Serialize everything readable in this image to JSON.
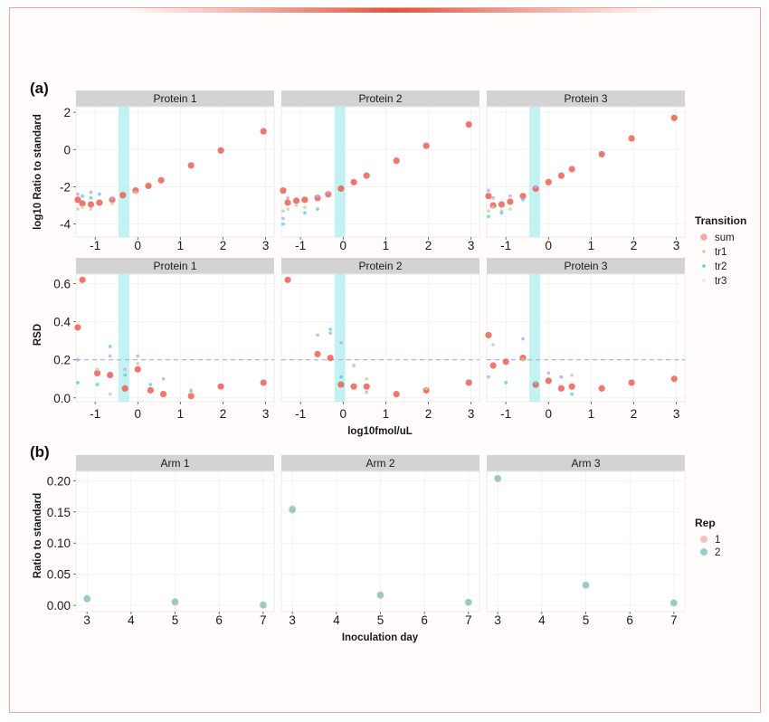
{
  "colors": {
    "sum": "#e8564a",
    "tr1": "#c9cfa8",
    "tr2": "#5ccfd9",
    "tr3": "#c9a3f0",
    "rep1": "#f4a9a0",
    "rep2": "#7ec9c8",
    "strip": "#d3d3d3",
    "highlight": "#a9ecec",
    "accent": "#e25440"
  },
  "panel_a": {
    "tag": "(a)",
    "xlabel": "log10fmol/uL",
    "top_ylabel": "log10 Ratio to standard",
    "bottom_ylabel": "RSD",
    "legend": {
      "title": "Transition",
      "items": [
        "sum",
        "tr1",
        "tr2",
        "tr3"
      ]
    }
  },
  "panel_b": {
    "tag": "(b)",
    "xlabel": "Inoculation day",
    "ylabel": "Ratio to standard",
    "legend": {
      "title": "Rep",
      "items": [
        "1",
        "2"
      ]
    }
  },
  "chart_data": [
    {
      "type": "scatter",
      "title": "log10 Ratio to standard",
      "facets": [
        "Protein 1",
        "Protein 2",
        "Protein 3"
      ],
      "xlabel": "log10fmol/uL",
      "ylabel": "log10 Ratio to standard",
      "xlim": [
        -1.45,
        3.2
      ],
      "ylim": [
        -4.7,
        2.3
      ],
      "xticks": [
        -1,
        0,
        1,
        2,
        3
      ],
      "xtick_labels": [
        "-1",
        "0",
        "1",
        "2",
        "3"
      ],
      "yticks": [
        -4,
        -2,
        0,
        2
      ],
      "ytick_labels": [
        "-4",
        "-2",
        "0",
        "2"
      ],
      "highlight_x": [
        [
          -0.45,
          -0.2
        ],
        [
          -0.2,
          0.05
        ],
        [
          -0.45,
          -0.2
        ]
      ],
      "series": [
        {
          "name": "sum",
          "facet": 0,
          "x": [
            -1.45,
            -1.3,
            -1.1,
            -0.9,
            -0.6,
            -0.35,
            -0.05,
            0.25,
            0.55,
            1.25,
            1.95,
            2.95
          ],
          "y": [
            -2.7,
            -2.9,
            -2.95,
            -2.85,
            -2.7,
            -2.45,
            -2.2,
            -1.95,
            -1.65,
            -0.85,
            -0.05,
            0.98
          ]
        },
        {
          "name": "tr1",
          "facet": 0,
          "x": [
            -1.45,
            -1.3,
            -1.1,
            -0.6,
            -0.05
          ],
          "y": [
            -3.2,
            -3.1,
            -3.2,
            -2.9,
            -2.3
          ]
        },
        {
          "name": "tr2",
          "facet": 0,
          "x": [
            -1.3,
            -1.1,
            -0.9
          ],
          "y": [
            -2.5,
            -2.6,
            -2.4
          ]
        },
        {
          "name": "tr3",
          "facet": 0,
          "x": [
            -1.45,
            -1.1,
            -0.6
          ],
          "y": [
            -2.4,
            -2.3,
            -2.6
          ]
        },
        {
          "name": "sum",
          "facet": 1,
          "x": [
            -1.45,
            -1.3,
            -1.1,
            -0.9,
            -0.6,
            -0.35,
            -0.05,
            0.25,
            0.55,
            1.25,
            1.95,
            2.95
          ],
          "y": [
            -2.2,
            -2.85,
            -2.75,
            -2.7,
            -2.6,
            -2.4,
            -2.1,
            -1.75,
            -1.4,
            -0.6,
            0.2,
            1.35
          ]
        },
        {
          "name": "tr1",
          "facet": 1,
          "x": [
            -1.45,
            -1.3,
            -1.1,
            -0.9
          ],
          "y": [
            -3.3,
            -3.2,
            -3.0,
            -3.1
          ]
        },
        {
          "name": "tr2",
          "facet": 1,
          "x": [
            -1.45,
            -0.9,
            -0.6
          ],
          "y": [
            -4.0,
            -3.4,
            -3.2
          ]
        },
        {
          "name": "tr3",
          "facet": 1,
          "x": [
            -1.45,
            -1.3,
            -0.6,
            -0.35
          ],
          "y": [
            -3.7,
            -2.6,
            -2.5,
            -2.3
          ]
        },
        {
          "name": "sum",
          "facet": 2,
          "x": [
            -1.45,
            -1.3,
            -1.1,
            -0.9,
            -0.6,
            -0.3,
            0.0,
            0.3,
            0.55,
            1.25,
            1.95,
            2.95
          ],
          "y": [
            -2.5,
            -3.0,
            -2.95,
            -2.8,
            -2.5,
            -2.1,
            -1.75,
            -1.4,
            -1.05,
            -0.25,
            0.6,
            1.7
          ]
        },
        {
          "name": "tr1",
          "facet": 2,
          "x": [
            -1.45,
            -1.3,
            -1.1,
            -0.9
          ],
          "y": [
            -3.3,
            -3.1,
            -3.3,
            -3.2
          ]
        },
        {
          "name": "tr2",
          "facet": 2,
          "x": [
            -1.45,
            -1.1,
            -0.6
          ],
          "y": [
            -3.6,
            -3.4,
            -2.7
          ]
        },
        {
          "name": "tr3",
          "facet": 2,
          "x": [
            -1.45,
            -1.3,
            -0.9,
            -0.3
          ],
          "y": [
            -2.2,
            -2.6,
            -2.5,
            -2.0
          ]
        }
      ]
    },
    {
      "type": "scatter",
      "title": "RSD",
      "facets": [
        "Protein 1",
        "Protein 2",
        "Protein 3"
      ],
      "xlabel": "log10fmol/uL",
      "ylabel": "RSD",
      "xlim": [
        -1.45,
        3.2
      ],
      "ylim": [
        -0.02,
        0.65
      ],
      "xticks": [
        -1,
        0,
        1,
        2,
        3
      ],
      "xtick_labels": [
        "-1",
        "0",
        "1",
        "2",
        "3"
      ],
      "yticks": [
        0.0,
        0.2,
        0.4,
        0.6
      ],
      "ytick_labels": [
        "0.0",
        "0.2",
        "0.4",
        "0.6"
      ],
      "reference_line_y": 0.2,
      "highlight_x": [
        [
          -0.45,
          -0.2
        ],
        [
          -0.2,
          0.05
        ],
        [
          -0.45,
          -0.2
        ]
      ],
      "series": [
        {
          "name": "sum",
          "facet": 0,
          "x": [
            -1.45,
            -1.3,
            -0.95,
            -0.65,
            -0.3,
            0.0,
            0.3,
            0.6,
            1.25,
            1.95,
            2.95
          ],
          "y": [
            0.37,
            0.62,
            0.13,
            0.12,
            0.05,
            0.15,
            0.04,
            0.02,
            0.01,
            0.06,
            0.08
          ]
        },
        {
          "name": "tr1",
          "facet": 0,
          "x": [
            -0.95,
            -0.65,
            0.0,
            1.25
          ],
          "y": [
            0.15,
            0.02,
            0.18,
            0.03
          ]
        },
        {
          "name": "tr2",
          "facet": 0,
          "x": [
            -1.45,
            -0.95,
            -0.65,
            -0.3,
            0.3
          ],
          "y": [
            0.08,
            0.07,
            0.27,
            0.12,
            0.07
          ]
        },
        {
          "name": "tr3",
          "facet": 0,
          "x": [
            -1.45,
            -0.65,
            -0.3,
            0.0,
            0.6,
            1.25
          ],
          "y": [
            0.2,
            0.22,
            0.15,
            0.22,
            0.1,
            0.04
          ]
        },
        {
          "name": "sum",
          "facet": 1,
          "x": [
            -1.3,
            -0.6,
            -0.3,
            -0.05,
            0.25,
            0.55,
            1.25,
            1.95,
            2.95
          ],
          "y": [
            0.62,
            0.23,
            0.21,
            0.07,
            0.06,
            0.06,
            0.02,
            0.04,
            0.08
          ]
        },
        {
          "name": "tr1",
          "facet": 1,
          "x": [
            -0.05,
            0.55,
            1.95
          ],
          "y": [
            0.11,
            0.1,
            0.05
          ]
        },
        {
          "name": "tr2",
          "facet": 1,
          "x": [
            -0.3,
            -0.05
          ],
          "y": [
            0.36,
            0.11
          ]
        },
        {
          "name": "tr3",
          "facet": 1,
          "x": [
            -0.6,
            -0.3,
            -0.05,
            0.25,
            0.55
          ],
          "y": [
            0.33,
            0.34,
            0.29,
            0.17,
            0.03
          ]
        },
        {
          "name": "sum",
          "facet": 2,
          "x": [
            -1.45,
            -1.3,
            -1.0,
            -0.6,
            -0.3,
            0.0,
            0.3,
            0.55,
            1.25,
            1.95,
            2.95
          ],
          "y": [
            0.33,
            0.17,
            0.19,
            0.21,
            0.07,
            0.09,
            0.05,
            0.06,
            0.05,
            0.08,
            0.1
          ]
        },
        {
          "name": "tr1",
          "facet": 2,
          "x": [
            -1.3,
            -0.6,
            0.3,
            0.55
          ],
          "y": [
            0.28,
            0.2,
            0.11,
            0.12
          ]
        },
        {
          "name": "tr2",
          "facet": 2,
          "x": [
            -1.0,
            -0.3,
            0.55
          ],
          "y": [
            0.08,
            0.08,
            0.02
          ]
        },
        {
          "name": "tr3",
          "facet": 2,
          "x": [
            -1.45,
            -0.6,
            0.0,
            0.3
          ],
          "y": [
            0.11,
            0.31,
            0.13,
            0.11
          ]
        }
      ]
    },
    {
      "type": "scatter",
      "title": "Ratio to standard",
      "facets": [
        "Arm 1",
        "Arm 2",
        "Arm 3"
      ],
      "xlabel": "Inoculation day",
      "ylabel": "Ratio to standard",
      "xlim": [
        2.75,
        7.25
      ],
      "ylim": [
        -0.01,
        0.215
      ],
      "xticks": [
        3,
        4,
        5,
        6,
        7
      ],
      "xtick_labels": [
        "3",
        "4",
        "5",
        "6",
        "7"
      ],
      "yticks": [
        0.0,
        0.05,
        0.1,
        0.15,
        0.2
      ],
      "ytick_labels": [
        "0.00",
        "0.05",
        "0.10",
        "0.15",
        "0.20"
      ],
      "series": [
        {
          "name": "1",
          "facet": 0,
          "x": [
            3,
            5,
            7
          ],
          "y": [
            0.01,
            0.005,
            0.0
          ]
        },
        {
          "name": "2",
          "facet": 0,
          "x": [
            3,
            5,
            7
          ],
          "y": [
            0.011,
            0.006,
            0.001
          ]
        },
        {
          "name": "1",
          "facet": 1,
          "x": [
            3,
            5,
            7
          ],
          "y": [
            0.155,
            0.016,
            0.005
          ]
        },
        {
          "name": "2",
          "facet": 1,
          "x": [
            3,
            5,
            7
          ],
          "y": [
            0.153,
            0.017,
            0.005
          ]
        },
        {
          "name": "1",
          "facet": 2,
          "x": [
            3,
            5,
            7
          ],
          "y": [
            0.203,
            0.032,
            0.004
          ]
        },
        {
          "name": "2",
          "facet": 2,
          "x": [
            3,
            5,
            7
          ],
          "y": [
            0.204,
            0.033,
            0.004
          ]
        }
      ]
    }
  ]
}
